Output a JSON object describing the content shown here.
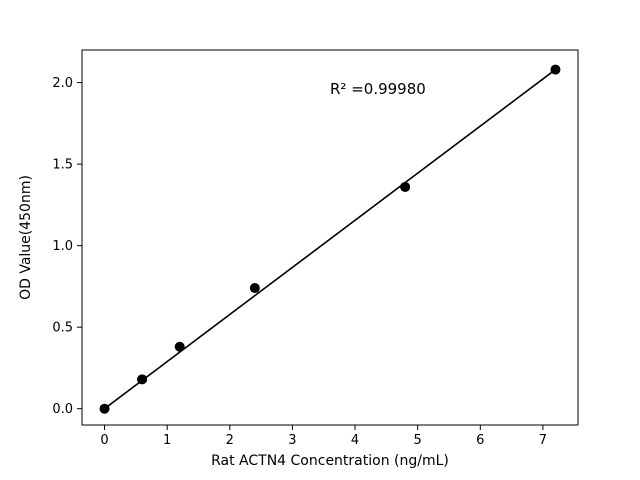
{
  "chart_data": {
    "type": "scatter",
    "title": "",
    "xlabel": "Rat ACTN4 Concentration (ng/mL)",
    "ylabel": "OD Value(450nm)",
    "x": [
      0,
      0.6,
      1.2,
      2.4,
      4.8,
      7.2
    ],
    "y": [
      0.0,
      0.18,
      0.38,
      0.74,
      1.36,
      2.08
    ],
    "fit_line": {
      "x": [
        0,
        7.2
      ],
      "y": [
        0.0,
        2.08
      ]
    },
    "annotation": {
      "text": "R² =0.99980",
      "x": 3.6,
      "y": 1.93
    },
    "xlim": [
      -0.36,
      7.56
    ],
    "ylim": [
      -0.1,
      2.2
    ],
    "xticks": [
      0,
      1,
      2,
      3,
      4,
      5,
      6,
      7
    ],
    "yticks": [
      0.0,
      0.5,
      1.0,
      1.5,
      2.0
    ],
    "marker_color": "#000000",
    "line_color": "#000000",
    "axis_color": "#000000",
    "grid": false,
    "legend": null
  }
}
